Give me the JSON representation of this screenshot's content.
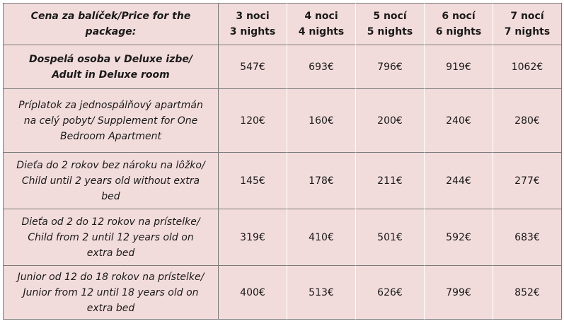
{
  "table": {
    "header": {
      "corner": [
        "Cena za balíček/Price for the",
        "package:"
      ],
      "columns": [
        [
          "3 noci",
          "3 nights"
        ],
        [
          "4 noci",
          "4 nights"
        ],
        [
          "5 nocí",
          "5 nights"
        ],
        [
          "6 nocí",
          "6 nights"
        ],
        [
          "7 nocí",
          "7 nights"
        ]
      ]
    },
    "rows": [
      {
        "label": [
          "Dospelá osoba v Deluxe izbe/",
          "Adult in Deluxe room"
        ],
        "prices": [
          "547€",
          "693€",
          "796€",
          "919€",
          "1062€"
        ]
      },
      {
        "label": [
          "Príplatok za jednospálňový apartmán",
          "na celý pobyt/ Supplement for One",
          "Bedroom Apartment"
        ],
        "prices": [
          "120€",
          "160€",
          "200€",
          "240€",
          "280€"
        ]
      },
      {
        "label": [
          "Dieťa do 2 rokov bez nároku na lôžko/",
          "Child until 2 years old without extra",
          "bed"
        ],
        "prices": [
          "145€",
          "178€",
          "211€",
          "244€",
          "277€"
        ]
      },
      {
        "label": [
          "Dieťa od 2 do 12 rokov na prístelke/",
          "Child from 2 until 12 years old on",
          "extra bed"
        ],
        "prices": [
          "319€",
          "410€",
          "501€",
          "592€",
          "683€"
        ]
      },
      {
        "label": [
          "Junior od 12 do 18 rokov na prístelke/",
          "Junior from 12 until 18 years old on",
          "extra bed"
        ],
        "prices": [
          "400€",
          "513€",
          "626€",
          "799€",
          "852€"
        ]
      }
    ]
  }
}
